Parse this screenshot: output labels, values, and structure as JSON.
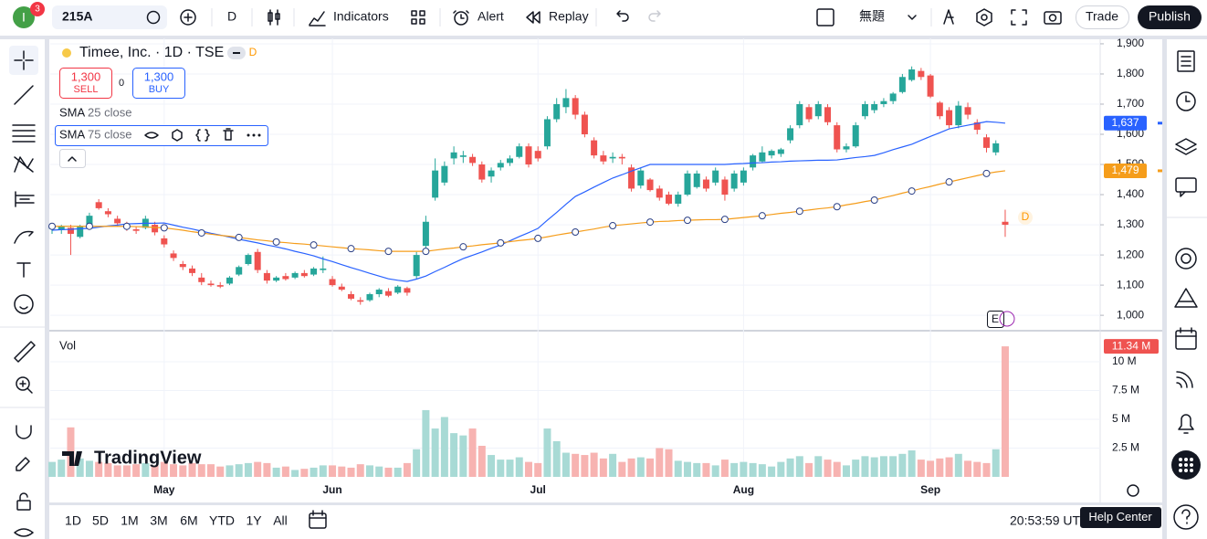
{
  "toolbar": {
    "avatar": "I",
    "badge": "3",
    "symbol": "215A",
    "interval": "D",
    "indicators": "Indicators",
    "alert": "Alert",
    "replay": "Replay",
    "layout_name": "無題",
    "trade": "Trade",
    "publish": "Publish"
  },
  "legend": {
    "title": "Timee, Inc. · 1D · TSE",
    "dividend": "D",
    "sell_price": "1,300",
    "sell": "SELL",
    "spread": "0",
    "buy_price": "1,300",
    "buy": "BUY",
    "volume": "Vol"
  },
  "chart_data": {
    "type": "candlestick",
    "categories": [
      null,
      null,
      null,
      null,
      null,
      null,
      null,
      null,
      null,
      null,
      null,
      null,
      "May",
      null,
      null,
      null,
      null,
      null,
      null,
      null,
      null,
      null,
      null,
      null,
      null,
      null,
      null,
      null,
      null,
      null,
      "Jun",
      null,
      null,
      null,
      null,
      null,
      null,
      null,
      null,
      null,
      null,
      null,
      null,
      null,
      null,
      null,
      null,
      null,
      null,
      null,
      null,
      null,
      "Jul",
      null,
      null,
      null,
      null,
      null,
      null,
      null,
      null,
      null,
      null,
      null,
      null,
      null,
      null,
      null,
      null,
      null,
      null,
      null,
      null,
      null,
      "Aug",
      null,
      null,
      null,
      null,
      null,
      null,
      null,
      null,
      null,
      null,
      null,
      null,
      null,
      null,
      null,
      null,
      null,
      null,
      null,
      "Sep",
      null,
      null,
      null,
      null,
      null,
      null,
      null,
      null
    ],
    "open": [
      1290,
      1285,
      1290,
      1260,
      1300,
      1375,
      1345,
      1320,
      1300,
      1285,
      1290,
      1300,
      1255,
      1205,
      1170,
      1155,
      1125,
      1105,
      1100,
      1105,
      1135,
      1170,
      1210,
      1140,
      1115,
      1130,
      1125,
      1140,
      1135,
      1150,
      1120,
      1095,
      1070,
      1050,
      1050,
      1070,
      1080,
      1075,
      1090,
      1130,
      1230,
      1390,
      1440,
      1520,
      1525,
      1525,
      1500,
      1460,
      1490,
      1505,
      1525,
      1560,
      1545,
      1560,
      1650,
      1690,
      1720,
      1665,
      1580,
      1530,
      1520,
      1525,
      1490,
      1430,
      1450,
      1420,
      1400,
      1370,
      1400,
      1425,
      1450,
      1440,
      1450,
      1420,
      1440,
      1490,
      1510,
      1530,
      1535,
      1580,
      1630,
      1690,
      1660,
      1690,
      1630,
      1550,
      1560,
      1660,
      1680,
      1700,
      1710,
      1740,
      1780,
      1810,
      1795,
      1705,
      1680,
      1630,
      1690,
      1640,
      1590,
      1540,
      1310
    ],
    "high": [
      1300,
      1300,
      1300,
      1300,
      1340,
      1385,
      1355,
      1330,
      1310,
      1295,
      1330,
      1310,
      1265,
      1215,
      1180,
      1165,
      1140,
      1115,
      1110,
      1130,
      1165,
      1205,
      1220,
      1150,
      1130,
      1140,
      1145,
      1150,
      1160,
      1195,
      1130,
      1105,
      1080,
      1060,
      1075,
      1090,
      1090,
      1100,
      1095,
      1210,
      1330,
      1520,
      1510,
      1560,
      1545,
      1535,
      1510,
      1490,
      1515,
      1530,
      1570,
      1570,
      1560,
      1660,
      1720,
      1750,
      1730,
      1675,
      1590,
      1545,
      1540,
      1535,
      1500,
      1490,
      1455,
      1430,
      1410,
      1410,
      1480,
      1480,
      1460,
      1490,
      1460,
      1480,
      1490,
      1535,
      1560,
      1550,
      1555,
      1630,
      1710,
      1700,
      1710,
      1700,
      1640,
      1570,
      1640,
      1710,
      1710,
      1720,
      1740,
      1800,
      1825,
      1820,
      1800,
      1710,
      1690,
      1710,
      1705,
      1650,
      1600,
      1580,
      1350
    ],
    "low": [
      1270,
      1270,
      1200,
      1255,
      1290,
      1350,
      1325,
      1295,
      1280,
      1270,
      1285,
      1265,
      1225,
      1180,
      1150,
      1130,
      1100,
      1095,
      1090,
      1100,
      1130,
      1165,
      1140,
      1105,
      1110,
      1115,
      1120,
      1125,
      1130,
      1140,
      1095,
      1080,
      1050,
      1035,
      1045,
      1060,
      1060,
      1070,
      1065,
      1120,
      1220,
      1380,
      1430,
      1500,
      1505,
      1495,
      1440,
      1440,
      1480,
      1495,
      1520,
      1490,
      1510,
      1550,
      1640,
      1670,
      1650,
      1590,
      1520,
      1500,
      1505,
      1500,
      1410,
      1420,
      1410,
      1380,
      1365,
      1360,
      1395,
      1420,
      1410,
      1430,
      1380,
      1410,
      1430,
      1480,
      1505,
      1520,
      1525,
      1570,
      1620,
      1640,
      1650,
      1630,
      1540,
      1540,
      1555,
      1650,
      1670,
      1690,
      1700,
      1735,
      1775,
      1780,
      1720,
      1650,
      1620,
      1620,
      1650,
      1600,
      1540,
      1530,
      1260
    ],
    "close": [
      1290,
      1295,
      1270,
      1295,
      1330,
      1355,
      1335,
      1305,
      1290,
      1280,
      1320,
      1275,
      1235,
      1190,
      1160,
      1140,
      1110,
      1100,
      1095,
      1125,
      1160,
      1200,
      1150,
      1115,
      1125,
      1120,
      1140,
      1130,
      1155,
      1155,
      1100,
      1085,
      1055,
      1045,
      1070,
      1085,
      1065,
      1095,
      1075,
      1200,
      1310,
      1480,
      1495,
      1540,
      1530,
      1505,
      1450,
      1480,
      1505,
      1520,
      1560,
      1500,
      1520,
      1650,
      1700,
      1720,
      1665,
      1600,
      1530,
      1510,
      1525,
      1520,
      1420,
      1480,
      1415,
      1390,
      1370,
      1400,
      1470,
      1470,
      1420,
      1480,
      1400,
      1470,
      1480,
      1530,
      1540,
      1545,
      1550,
      1620,
      1700,
      1650,
      1700,
      1640,
      1550,
      1560,
      1630,
      1700,
      1700,
      1710,
      1735,
      1790,
      1815,
      1790,
      1725,
      1660,
      1630,
      1695,
      1665,
      1615,
      1555,
      1570,
      1300
    ],
    "up_color": "#26a69a",
    "down_color": "#ef5350",
    "ylim": [
      961,
      1918
    ],
    "yticks": [
      {
        "value": 1000,
        "label": "1,000"
      },
      {
        "value": 1100,
        "label": "1,100"
      },
      {
        "value": 1200,
        "label": "1,200"
      },
      {
        "value": 1300,
        "label": "1,300"
      },
      {
        "value": 1400,
        "label": "1,400"
      },
      {
        "value": 1500,
        "label": "1,500"
      },
      {
        "value": 1600,
        "label": "1,600"
      },
      {
        "value": 1700,
        "label": "1,700"
      },
      {
        "value": 1800,
        "label": "1,800"
      },
      {
        "value": 1900,
        "label": "1,900"
      }
    ],
    "grid": true,
    "series": [
      {
        "name": "SMA",
        "params": "25 close",
        "color": "#2962ff",
        "values": [
          1282,
          1284,
          1285,
          1287,
          1288,
          1292,
          1296,
          1299,
          1303,
          1304,
          1305,
          1305,
          1306,
          1299,
          1292,
          1286,
          1279,
          1272,
          1266,
          1259,
          1252,
          1246,
          1240,
          1233,
          1227,
          1220,
          1212,
          1205,
          1197,
          1187,
          1178,
          1168,
          1158,
          1149,
          1139,
          1130,
          1121,
          1116,
          1112,
          1120,
          1130,
          1145,
          1159,
          1174,
          1188,
          1199,
          1210,
          1222,
          1233,
          1247,
          1261,
          1274,
          1288,
          1315,
          1341,
          1368,
          1394,
          1409,
          1425,
          1440,
          1455,
          1466,
          1478,
          1489,
          1500,
          1500,
          1500,
          1500,
          1500,
          1500,
          1500,
          1500,
          1500,
          1502,
          1503,
          1505,
          1506,
          1508,
          1509,
          1511,
          1512,
          1513,
          1514,
          1514,
          1515,
          1519,
          1523,
          1526,
          1530,
          1539,
          1549,
          1558,
          1567,
          1580,
          1593,
          1605,
          1618,
          1624,
          1630,
          1636,
          1642,
          1640,
          1637
        ],
        "last_label": "1,637"
      },
      {
        "name": "SMA",
        "params": "75 close",
        "color": "#f59d1b",
        "marker_every": 4,
        "values": [
          1295,
          1295,
          1295,
          1295,
          1295,
          1295,
          1295,
          1295,
          1295,
          1294,
          1293,
          1291,
          1290,
          1286,
          1282,
          1277,
          1273,
          1269,
          1265,
          1262,
          1258,
          1254,
          1250,
          1247,
          1243,
          1241,
          1238,
          1236,
          1233,
          1230,
          1227,
          1224,
          1221,
          1219,
          1217,
          1214,
          1212,
          1212,
          1212,
          1212,
          1212,
          1216,
          1220,
          1223,
          1227,
          1230,
          1234,
          1237,
          1240,
          1244,
          1248,
          1251,
          1255,
          1260,
          1266,
          1271,
          1276,
          1281,
          1286,
          1292,
          1297,
          1300,
          1303,
          1306,
          1309,
          1311,
          1312,
          1314,
          1315,
          1316,
          1317,
          1317,
          1318,
          1321,
          1324,
          1327,
          1330,
          1334,
          1338,
          1341,
          1345,
          1349,
          1353,
          1356,
          1360,
          1366,
          1371,
          1377,
          1382,
          1390,
          1397,
          1405,
          1412,
          1420,
          1427,
          1435,
          1442,
          1449,
          1456,
          1463,
          1470,
          1475,
          1479
        ],
        "last_label": "1,479"
      }
    ],
    "volume": {
      "up_color": "#a8dad5",
      "down_color": "#f7b3b1",
      "values": [
        1.3,
        1.5,
        4.3,
        1.6,
        1.4,
        1.3,
        1.2,
        1.0,
        1.0,
        1.1,
        1.2,
        1.0,
        1.3,
        1.1,
        1.0,
        1.2,
        1.1,
        1.1,
        0.9,
        1.0,
        1.1,
        1.2,
        1.3,
        1.2,
        0.8,
        0.9,
        0.6,
        0.7,
        0.8,
        1.0,
        1.0,
        0.9,
        0.8,
        1.1,
        1.0,
        0.9,
        0.8,
        0.8,
        1.2,
        2.4,
        5.8,
        4.2,
        5.2,
        3.8,
        3.6,
        4.2,
        2.7,
        1.9,
        1.5,
        1.5,
        1.7,
        1.3,
        1.2,
        4.2,
        3.1,
        2.1,
        2.0,
        1.9,
        2.1,
        1.6,
        2.0,
        1.3,
        1.6,
        1.7,
        1.6,
        2.5,
        2.4,
        1.4,
        1.3,
        1.2,
        1.2,
        1.0,
        1.5,
        1.2,
        1.3,
        1.2,
        1.1,
        0.9,
        1.3,
        1.6,
        1.8,
        1.2,
        1.8,
        1.5,
        1.3,
        1.0,
        1.5,
        1.8,
        1.7,
        1.8,
        1.8,
        2.0,
        2.3,
        1.5,
        1.4,
        1.6,
        1.7,
        2.0,
        1.4,
        1.3,
        1.2,
        2.4,
        11.34
      ],
      "ylim": [
        0,
        12.46
      ],
      "yticks": [
        {
          "value": 2.5,
          "label": "2.5 M"
        },
        {
          "value": 5,
          "label": "5 M"
        },
        {
          "value": 7.5,
          "label": "7.5 M"
        },
        {
          "value": 10,
          "label": "10 M"
        }
      ],
      "last_label": "11.34 M"
    }
  },
  "watermark": "TradingView",
  "events": {
    "earnings": "E",
    "dividend": "D"
  },
  "timeframes": [
    "1D",
    "5D",
    "1M",
    "3M",
    "6M",
    "YTD",
    "1Y",
    "All"
  ],
  "clock": "20:53:59 UTC",
  "tooltip": "Help Center"
}
